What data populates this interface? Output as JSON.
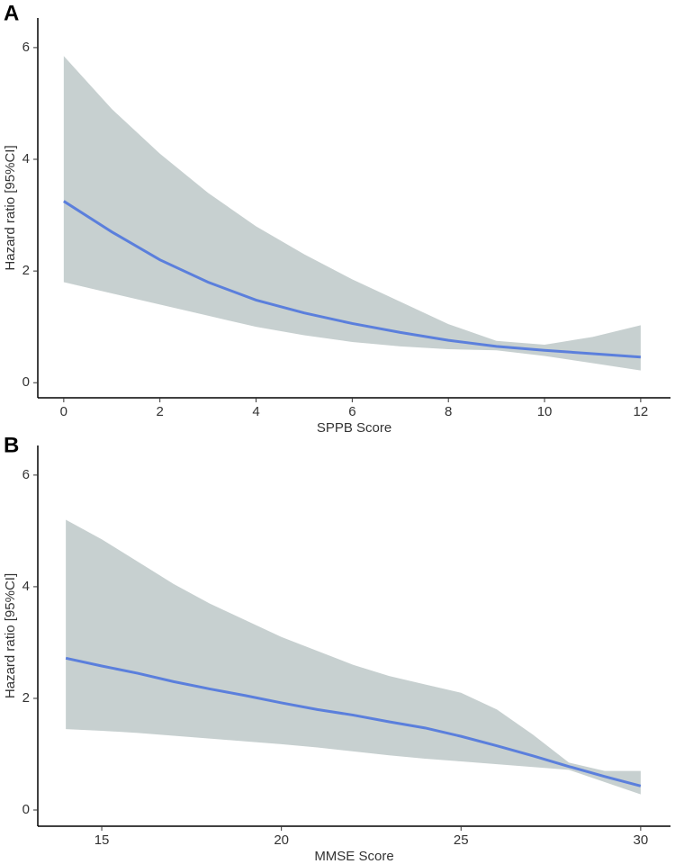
{
  "chart_data": [
    {
      "type": "line",
      "panel": "A",
      "xlabel": "SPPB Score",
      "ylabel": "Hazard ratio [95%CI]",
      "x": [
        0,
        1,
        2,
        3,
        4,
        5,
        6,
        7,
        8,
        9,
        10,
        11,
        12
      ],
      "values": [
        3.25,
        2.7,
        2.2,
        1.8,
        1.48,
        1.25,
        1.06,
        0.9,
        0.76,
        0.65,
        0.58,
        0.52,
        0.46
      ],
      "upper": [
        5.85,
        4.9,
        4.1,
        3.4,
        2.8,
        2.3,
        1.85,
        1.45,
        1.05,
        0.75,
        0.68,
        0.82,
        1.03
      ],
      "lower": [
        1.8,
        1.6,
        1.4,
        1.2,
        1.0,
        0.85,
        0.73,
        0.65,
        0.6,
        0.58,
        0.48,
        0.35,
        0.22
      ],
      "color": "#5b7fdc",
      "band_color": "#c7d0d0",
      "xlim": [
        -0.54,
        12.62
      ],
      "xticks": [
        0,
        2,
        4,
        6,
        8,
        10,
        12
      ],
      "ylim": [
        -0.27,
        6.53
      ],
      "yticks": [
        0,
        2,
        4,
        6
      ]
    },
    {
      "type": "line",
      "panel": "B",
      "xlabel": "MMSE Score",
      "ylabel": "Hazard ratio [95%CI]",
      "x": [
        14,
        15,
        16,
        17,
        18,
        19,
        20,
        21,
        22,
        23,
        24,
        25,
        26,
        27,
        28,
        29,
        30
      ],
      "values": [
        2.72,
        2.58,
        2.45,
        2.3,
        2.17,
        2.05,
        1.92,
        1.8,
        1.7,
        1.58,
        1.47,
        1.32,
        1.15,
        0.97,
        0.78,
        0.6,
        0.43
      ],
      "upper": [
        5.2,
        4.85,
        4.45,
        4.05,
        3.7,
        3.4,
        3.1,
        2.85,
        2.6,
        2.4,
        2.25,
        2.1,
        1.8,
        1.35,
        0.85,
        0.7,
        0.7
      ],
      "lower": [
        1.45,
        1.42,
        1.38,
        1.33,
        1.28,
        1.23,
        1.18,
        1.12,
        1.05,
        0.98,
        0.92,
        0.87,
        0.82,
        0.77,
        0.72,
        0.5,
        0.28
      ],
      "color": "#5b7fdc",
      "band_color": "#c7d0d0",
      "xlim": [
        13.22,
        30.83
      ],
      "xticks": [
        15,
        20,
        25,
        30
      ],
      "ylim": [
        -0.29,
        6.53
      ],
      "yticks": [
        0,
        2,
        4,
        6
      ]
    }
  ]
}
